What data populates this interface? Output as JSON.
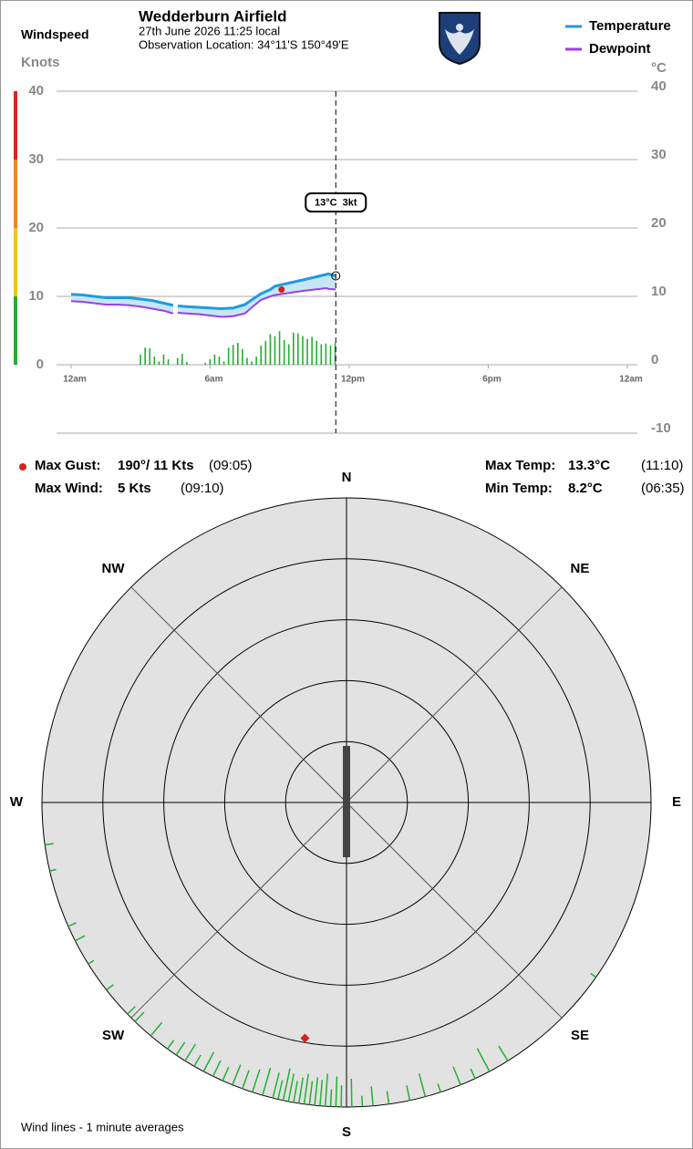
{
  "header": {
    "title": "Wedderburn Airfield",
    "date": "27th June 2026  11:25 local",
    "location": "Observation Location: 34°11'S 150°49'E"
  },
  "chart_data": [
    {
      "type": "line",
      "title": "Windspeed",
      "y_label": "Knots",
      "y2_label": "°C",
      "xlim": [
        0,
        24
      ],
      "xticks": [
        {
          "value": 0,
          "label": "12am"
        },
        {
          "value": 6,
          "label": "6am"
        },
        {
          "value": 12,
          "label": "12pm"
        },
        {
          "value": 18,
          "label": "6pm"
        },
        {
          "value": 24,
          "label": "12am"
        }
      ],
      "ylim": [
        -10,
        40
      ],
      "yticks": [
        0,
        10,
        20,
        30,
        40
      ],
      "y2lim": [
        -10,
        40
      ],
      "y2ticks": [
        -10,
        0,
        10,
        20,
        30,
        40
      ],
      "grid": true,
      "x": [
        0,
        0.5,
        1,
        1.5,
        2,
        2.5,
        3,
        3.5,
        4,
        4.4,
        4.5,
        4.6,
        5,
        5.5,
        6,
        6.5,
        7,
        7.5,
        7.8,
        8.2,
        8.6,
        8.8,
        9.2,
        9.6,
        10,
        10.5,
        11,
        11.1,
        11.42
      ],
      "series": [
        {
          "name": "Temperature",
          "color": "#1e9be0",
          "axis": "y2",
          "values": [
            10.3,
            10.2,
            10.0,
            9.8,
            9.8,
            9.8,
            9.6,
            9.4,
            9.0,
            8.7,
            null,
            8.6,
            8.5,
            8.4,
            8.3,
            8.2,
            8.3,
            8.8,
            9.5,
            10.4,
            11.0,
            11.5,
            11.8,
            12.1,
            12.4,
            12.8,
            13.2,
            13.3,
            13.0
          ]
        },
        {
          "name": "Dewpoint",
          "color": "#a03ee0",
          "axis": "y2",
          "values": [
            9.3,
            9.2,
            9.0,
            8.8,
            8.8,
            8.7,
            8.5,
            8.2,
            7.9,
            7.5,
            null,
            7.6,
            7.5,
            7.4,
            7.2,
            7.0,
            7.1,
            7.5,
            8.4,
            9.5,
            10.0,
            10.2,
            10.4,
            10.6,
            10.8,
            11.0,
            11.2,
            11.1,
            11.0
          ]
        }
      ],
      "band_color": "#c6e6f6",
      "wind_bars": {
        "color": "#22b030",
        "x": [
          3.0,
          3.2,
          3.4,
          3.6,
          3.8,
          4.0,
          4.2,
          4.4,
          4.6,
          4.8,
          5.0,
          5.2,
          5.4,
          5.6,
          5.8,
          6.0,
          6.2,
          6.4,
          6.6,
          6.8,
          7.0,
          7.2,
          7.4,
          7.6,
          7.8,
          8.0,
          8.2,
          8.4,
          8.6,
          8.8,
          9.0,
          9.2,
          9.4,
          9.6,
          9.8,
          10.0,
          10.2,
          10.4,
          10.6,
          10.8,
          11.0,
          11.2,
          11.4
        ],
        "values": [
          1.5,
          2.5,
          2.4,
          1.2,
          0.5,
          1.5,
          0.8,
          0,
          1,
          1.6,
          0.4,
          0,
          0,
          0,
          0.3,
          0.8,
          1.5,
          1.2,
          0.5,
          2.5,
          2.9,
          3.2,
          2.3,
          1,
          0.5,
          1.2,
          2.8,
          3.5,
          4.5,
          4.2,
          4.9,
          3.6,
          3.0,
          4.7,
          4.6,
          4.2,
          3.8,
          4.1,
          3.5,
          3.0,
          3.1,
          2.8,
          3.2
        ]
      },
      "gust": {
        "x": 9.08,
        "value": 11,
        "color": "#d42020"
      },
      "cursor": {
        "x": 11.42,
        "label": "13°C  3kt"
      }
    },
    {
      "type": "polar",
      "labels": [
        "N",
        "NE",
        "E",
        "SE",
        "S",
        "SW",
        "W",
        "NW"
      ],
      "rlim": [
        0,
        14
      ],
      "gust": {
        "direction": 190,
        "speed": 11,
        "color": "#d42020"
      },
      "wind_lines": {
        "color": "#22b030",
        "directions": [
          125,
          148,
          152,
          155,
          158,
          162,
          165,
          168,
          172,
          175,
          177,
          179,
          181,
          182,
          183,
          184,
          185,
          186,
          187,
          188,
          189,
          190,
          191,
          192,
          193,
          194,
          196,
          198,
          200,
          202,
          204,
          206,
          208,
          210,
          212,
          214,
          216,
          220,
          224,
          226,
          232,
          238,
          243,
          246,
          257,
          262
        ],
        "speeds": [
          0.3,
          0.8,
          1.2,
          0.5,
          0.9,
          0.4,
          1.1,
          0.7,
          0.6,
          0.9,
          0.5,
          1.3,
          1.0,
          1.4,
          0.8,
          1.5,
          1.2,
          1.3,
          1.1,
          1.4,
          1.2,
          1.0,
          1.3,
          1.5,
          0.9,
          1.2,
          1.3,
          1.1,
          0.9,
          1.0,
          0.7,
          0.8,
          1.0,
          0.6,
          0.9,
          0.7,
          0.5,
          0.8,
          0.6,
          0.5,
          0.4,
          0.3,
          0.5,
          0.4,
          0.3,
          0.4
        ]
      }
    }
  ],
  "stats": [
    {
      "label": "Max Gust:",
      "value": "190°/ 11 Kts",
      "time": "(09:05)"
    },
    {
      "label": "Max Wind:",
      "value": "5 Kts",
      "time": "(09:10)"
    },
    {
      "label": "Max Temp:",
      "value": "13.3°C",
      "time": "(11:10)"
    },
    {
      "label": "Min Temp:",
      "value": "8.2°C",
      "time": "(06:35)"
    }
  ],
  "footnote": "Wind lines - 1 minute averages"
}
